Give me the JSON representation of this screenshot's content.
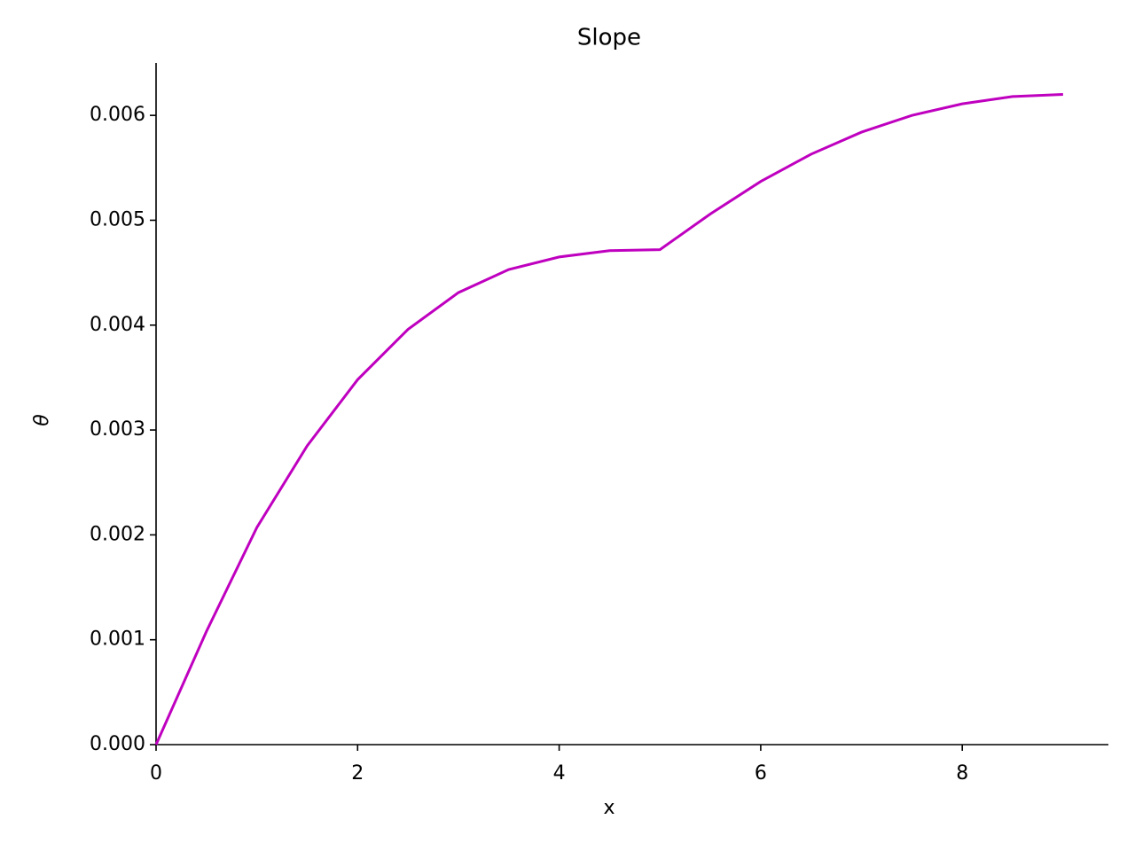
{
  "chart_data": {
    "type": "line",
    "title": "Slope",
    "x_label": "x",
    "y_label": "θ",
    "x": [
      0,
      0.5,
      1,
      1.5,
      2,
      2.5,
      3,
      3.5,
      4,
      4.5,
      5,
      5.5,
      6,
      6.5,
      7,
      7.5,
      8,
      8.5,
      9
    ],
    "series": [
      {
        "color": "#bf00bf",
        "values": [
          0,
          0.00108,
          0.00207,
          0.00285,
          0.00348,
          0.00396,
          0.00431,
          0.00453,
          0.00465,
          0.00471,
          0.00472,
          0.00506,
          0.00537,
          0.00563,
          0.00584,
          0.006,
          0.00611,
          0.00618,
          0.0062
        ]
      }
    ],
    "xlim": [
      0,
      9.45
    ],
    "ylim": [
      0,
      0.0065
    ],
    "xticks": [
      0,
      2,
      4,
      6,
      8
    ],
    "yticks": [
      {
        "value": 0,
        "label": "0.000"
      },
      {
        "value": 0.001,
        "label": "0.001"
      },
      {
        "value": 0.002,
        "label": "0.002"
      },
      {
        "value": 0.003,
        "label": "0.003"
      },
      {
        "value": 0.004,
        "label": "0.004"
      },
      {
        "value": 0.005,
        "label": "0.005"
      },
      {
        "value": 0.006,
        "label": "0.006"
      }
    ],
    "grid": false
  }
}
